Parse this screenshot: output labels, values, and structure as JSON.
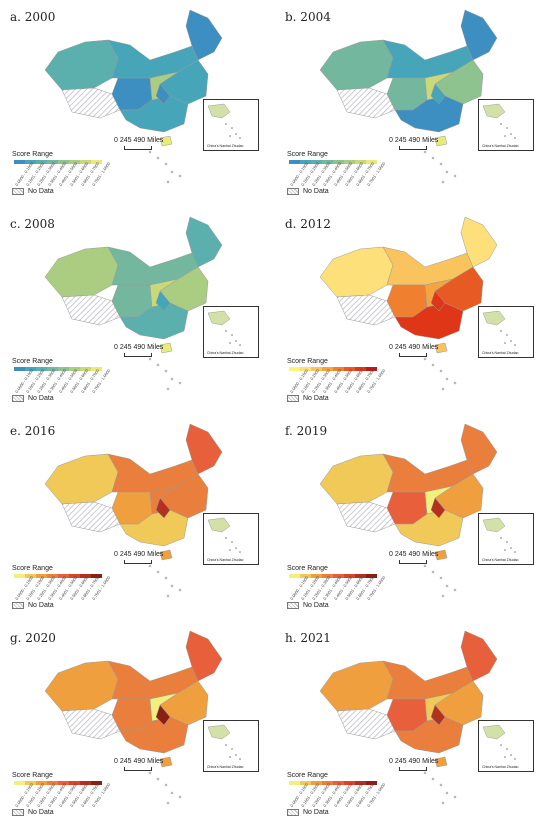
{
  "figure": {
    "legend_title": "Score Range",
    "no_data_label": "No Data",
    "scale_label": "0  245 490 Miles",
    "inset_label": "China's Nanhai Zhudao",
    "tick_labels": [
      "0.0000 - 0.1000",
      "0.1001 - 0.2000",
      "0.2001 - 0.3000",
      "0.3001 - 0.4000",
      "0.4001 - 0.5000",
      "0.5001 - 0.6000",
      "0.6001 - 0.7000",
      "0.7001 - 1.0000"
    ],
    "ramps": {
      "teal": [
        "#3c8fc0",
        "#46a5b8",
        "#5bb0ad",
        "#73b79f",
        "#8ec28f",
        "#abcd82",
        "#c9d97a",
        "#e8ea7c"
      ],
      "hot": [
        "#fff37a",
        "#fde07a",
        "#f9c35e",
        "#f5a43f",
        "#f07f2f",
        "#e85a23",
        "#df3617",
        "#b71c1c"
      ],
      "brown": [
        "#f3ef7d",
        "#f0c959",
        "#f09f3f",
        "#ea7f3d",
        "#e75f3b",
        "#d9442b",
        "#b2311f",
        "#8a1f14"
      ]
    },
    "no_data_color": "#b9b9c4",
    "panels": [
      {
        "title": "a. 2000",
        "ramp": "teal",
        "colors": {
          "west": "#5bb0ad",
          "tibet": "#c2c2cc",
          "inner": "#46a5b8",
          "northeast": "#3c8fc0",
          "center": "#3c8fc0",
          "east": "#46a5b8",
          "south": "#46a5b8",
          "coast": "#abcd82",
          "hotspot": "#3c8fc0",
          "hainan": "#e8ea7c"
        }
      },
      {
        "title": "b. 2004",
        "ramp": "teal",
        "colors": {
          "west": "#73b79f",
          "tibet": "#c2c2cc",
          "inner": "#46a5b8",
          "northeast": "#3c8fc0",
          "center": "#73b79f",
          "east": "#8ec28f",
          "south": "#3c8fc0",
          "coast": "#c9d97a",
          "hotspot": "#46a5b8",
          "hainan": "#e8ea7c"
        }
      },
      {
        "title": "c. 2008",
        "ramp": "teal",
        "colors": {
          "west": "#abcd82",
          "tibet": "#c2c2cc",
          "inner": "#73b79f",
          "northeast": "#5bb0ad",
          "center": "#73b79f",
          "east": "#abcd82",
          "south": "#5bb0ad",
          "coast": "#c9d97a",
          "hotspot": "#46a5b8",
          "hainan": "#e8ea7c"
        }
      },
      {
        "title": "d. 2012",
        "ramp": "hot",
        "colors": {
          "west": "#fde07a",
          "tibet": "#c2c2cc",
          "inner": "#f9c35e",
          "northeast": "#fde07a",
          "center": "#f07f2f",
          "east": "#e85a23",
          "south": "#df3617",
          "coast": "#f5a43f",
          "hotspot": "#df3617",
          "hainan": "#f9c35e"
        }
      },
      {
        "title": "e. 2016",
        "ramp": "brown",
        "colors": {
          "west": "#f0c959",
          "tibet": "#c2c2cc",
          "inner": "#ea7f3d",
          "northeast": "#e75f3b",
          "center": "#f09f3f",
          "east": "#ea7f3d",
          "south": "#f0c959",
          "coast": "#ea7f3d",
          "hotspot": "#b2311f",
          "hainan": "#f09f3f"
        }
      },
      {
        "title": "f. 2019",
        "ramp": "brown",
        "colors": {
          "west": "#f0c959",
          "tibet": "#c2c2cc",
          "inner": "#ea7f3d",
          "northeast": "#ea7f3d",
          "center": "#e75f3b",
          "east": "#f09f3f",
          "south": "#f0c959",
          "coast": "#f3ef7d",
          "hotspot": "#b2311f",
          "hainan": "#f09f3f"
        }
      },
      {
        "title": "g. 2020",
        "ramp": "brown",
        "colors": {
          "west": "#f09f3f",
          "tibet": "#c2c2cc",
          "inner": "#ea7f3d",
          "northeast": "#e75f3b",
          "center": "#ea7f3d",
          "east": "#f09f3f",
          "south": "#ea7f3d",
          "coast": "#f3ef7d",
          "hotspot": "#8a1f14",
          "hainan": "#f09f3f"
        }
      },
      {
        "title": "h. 2021",
        "ramp": "brown",
        "colors": {
          "west": "#f09f3f",
          "tibet": "#c2c2cc",
          "inner": "#ea7f3d",
          "northeast": "#e75f3b",
          "center": "#e75f3b",
          "east": "#f09f3f",
          "south": "#ea7f3d",
          "coast": "#f0c959",
          "hotspot": "#b2311f",
          "hainan": "#f09f3f"
        }
      }
    ]
  }
}
